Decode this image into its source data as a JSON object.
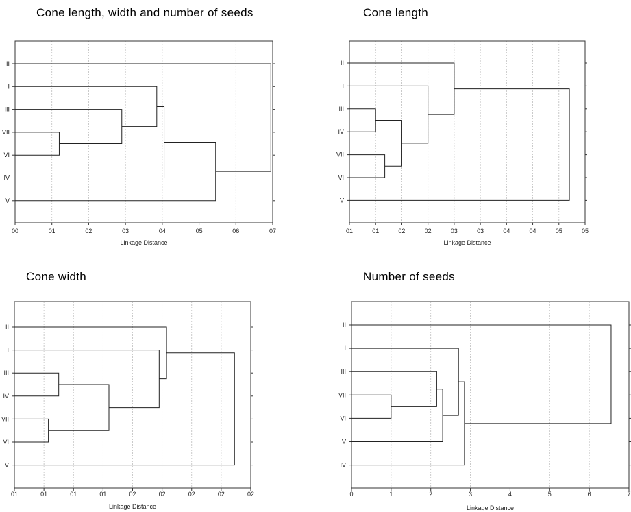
{
  "chart_data": [
    {
      "type": "dendrogram",
      "title": "Cone length, width and number of seeds",
      "xlabel": "Linkage Distance",
      "x_tick_labels": [
        "00",
        "01",
        "02",
        "03",
        "04",
        "05",
        "06",
        "07"
      ],
      "xlim": [
        0,
        0.7
      ],
      "leaf_order": [
        "II",
        "I",
        "III",
        "VII",
        "VI",
        "IV",
        "V"
      ],
      "merges": [
        {
          "left": "VII",
          "right": "VI",
          "height": 0.12
        },
        {
          "left": "III",
          "right": "VII,VI",
          "height": 0.29
        },
        {
          "left": "I",
          "right": "III,VII,VI",
          "height": 0.385
        },
        {
          "left": "I,III,VII,VI",
          "right": "IV",
          "height": 0.405
        },
        {
          "left": "I,III,VII,VI,IV",
          "right": "V",
          "height": 0.545
        },
        {
          "left": "II",
          "right": "I,III,VII,VI,IV,V",
          "height": 0.695
        }
      ]
    },
    {
      "type": "dendrogram",
      "title": "Cone length",
      "xlabel": "Linkage Distance",
      "x_tick_labels": [
        "01",
        "01",
        "02",
        "02",
        "03",
        "03",
        "04",
        "04",
        "05",
        "05"
      ],
      "xlim": [
        0,
        9
      ],
      "leaf_order": [
        "II",
        "I",
        "III",
        "IV",
        "VII",
        "VI",
        "V"
      ],
      "merges": [
        {
          "left": "III",
          "right": "IV",
          "height": 1.0
        },
        {
          "left": "VII",
          "right": "VI",
          "height": 1.35
        },
        {
          "left": "III,IV",
          "right": "VII,VI",
          "height": 2.0
        },
        {
          "left": "I",
          "right": "III,IV,VII,VI",
          "height": 3.0
        },
        {
          "left": "II",
          "right": "I,III,IV,VII,VI",
          "height": 4.0
        },
        {
          "left": "II,I,III,IV,VII,VI",
          "right": "V",
          "height": 8.4
        }
      ]
    },
    {
      "type": "dendrogram",
      "title": "Cone width",
      "xlabel": "Linkage Distance",
      "x_tick_labels": [
        "01",
        "01",
        "01",
        "01",
        "02",
        "02",
        "02",
        "02",
        "02"
      ],
      "xlim": [
        0,
        8
      ],
      "leaf_order": [
        "II",
        "I",
        "III",
        "IV",
        "VII",
        "VI",
        "V"
      ],
      "merges": [
        {
          "left": "VII",
          "right": "VI",
          "height": 1.15
        },
        {
          "left": "III",
          "right": "IV",
          "height": 1.5
        },
        {
          "left": "III,IV",
          "right": "VII,VI",
          "height": 3.2
        },
        {
          "left": "I",
          "right": "III,IV,VII,VI",
          "height": 4.9
        },
        {
          "left": "II",
          "right": "I,III,IV,VII,VI",
          "height": 5.15
        },
        {
          "left": "II,I,III,IV,VII,VI",
          "right": "V",
          "height": 7.45
        }
      ]
    },
    {
      "type": "dendrogram",
      "title": "Number of seeds",
      "xlabel": "Linkage Distance",
      "x_tick_labels": [
        "0",
        "1",
        "2",
        "3",
        "4",
        "5",
        "6",
        "7"
      ],
      "xlim": [
        0,
        7
      ],
      "leaf_order": [
        "II",
        "I",
        "III",
        "VII",
        "VI",
        "V",
        "IV"
      ],
      "merges": [
        {
          "left": "VII",
          "right": "VI",
          "height": 1.0
        },
        {
          "left": "III",
          "right": "VII,VI",
          "height": 2.15
        },
        {
          "left": "III,VII,VI",
          "right": "V",
          "height": 2.3
        },
        {
          "left": "I",
          "right": "III,VII,VI,V",
          "height": 2.7
        },
        {
          "left": "I,III,VII,VI,V",
          "right": "IV",
          "height": 2.85
        },
        {
          "left": "II",
          "right": "I,III,VII,VI,V,IV",
          "height": 6.55
        }
      ]
    }
  ]
}
